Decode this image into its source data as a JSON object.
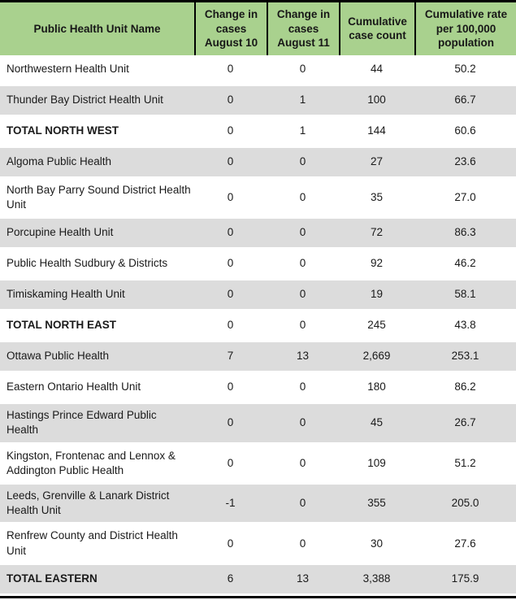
{
  "colors": {
    "header_bg": "#a9d18e",
    "alt_row_bg": "#dcdcdc",
    "border": "#000000",
    "text": "#1a1a1a"
  },
  "table": {
    "columns": [
      {
        "label": "Public Health Unit Name"
      },
      {
        "label": "Change in cases August 10"
      },
      {
        "label": "Change in cases August 11"
      },
      {
        "label": "Cumulative case count"
      },
      {
        "label": "Cumulative rate per 100,000 population"
      }
    ],
    "rows": [
      {
        "name": "Northwestern Health Unit",
        "aug10": "0",
        "aug11": "0",
        "count": "44",
        "rate": "50.2"
      },
      {
        "name": "Thunder Bay District Health Unit",
        "aug10": "0",
        "aug11": "1",
        "count": "100",
        "rate": "66.7"
      },
      {
        "name": "TOTAL NORTH WEST",
        "aug10": "0",
        "aug11": "1",
        "count": "144",
        "rate": "60.6"
      },
      {
        "name": "Algoma Public Health",
        "aug10": "0",
        "aug11": "0",
        "count": "27",
        "rate": "23.6"
      },
      {
        "name": "North Bay Parry Sound District Health Unit",
        "aug10": "0",
        "aug11": "0",
        "count": "35",
        "rate": "27.0"
      },
      {
        "name": "Porcupine Health Unit",
        "aug10": "0",
        "aug11": "0",
        "count": "72",
        "rate": "86.3"
      },
      {
        "name": "Public Health Sudbury & Districts",
        "aug10": "0",
        "aug11": "0",
        "count": "92",
        "rate": "46.2"
      },
      {
        "name": "Timiskaming Health Unit",
        "aug10": "0",
        "aug11": "0",
        "count": "19",
        "rate": "58.1"
      },
      {
        "name": "TOTAL NORTH EAST",
        "aug10": "0",
        "aug11": "0",
        "count": "245",
        "rate": "43.8"
      },
      {
        "name": "Ottawa Public Health",
        "aug10": "7",
        "aug11": "13",
        "count": "2,669",
        "rate": "253.1"
      },
      {
        "name": "Eastern Ontario Health Unit",
        "aug10": "0",
        "aug11": "0",
        "count": "180",
        "rate": "86.2"
      },
      {
        "name": "Hastings Prince Edward Public Health",
        "aug10": "0",
        "aug11": "0",
        "count": "45",
        "rate": "26.7"
      },
      {
        "name": "Kingston, Frontenac and Lennox & Addington Public Health",
        "aug10": "0",
        "aug11": "0",
        "count": "109",
        "rate": "51.2"
      },
      {
        "name": "Leeds, Grenville & Lanark District Health Unit",
        "aug10": "-1",
        "aug11": "0",
        "count": "355",
        "rate": "205.0"
      },
      {
        "name": "Renfrew County and District Health Unit",
        "aug10": "0",
        "aug11": "0",
        "count": "30",
        "rate": "27.6"
      },
      {
        "name": "TOTAL EASTERN",
        "aug10": "6",
        "aug11": "13",
        "count": "3,388",
        "rate": "175.9"
      }
    ]
  }
}
